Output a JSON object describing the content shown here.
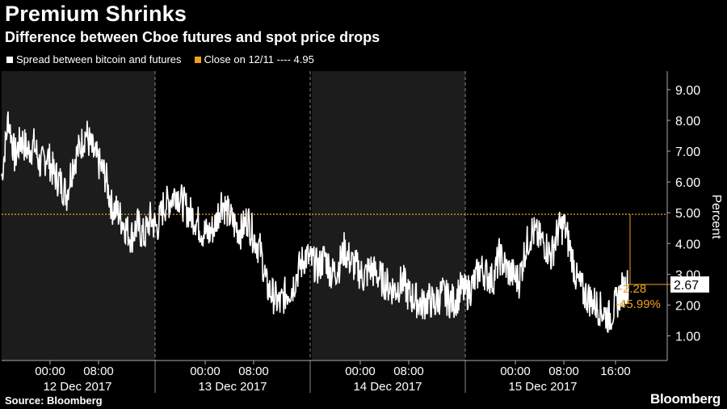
{
  "chart_data": {
    "type": "line",
    "title": "Premium Shrinks",
    "subtitle": "Difference between Cboe futures and spot price drops",
    "ylabel": "Percent",
    "ylim": [
      0.2,
      9.6
    ],
    "yticks": [
      "1.00",
      "2.00",
      "3.00",
      "4.00",
      "5.00",
      "6.00",
      "7.00",
      "8.00",
      "9.00"
    ],
    "x_time_labels": [
      "00:00",
      "08:00",
      "00:00",
      "08:00",
      "00:00",
      "08:00",
      "00:00",
      "08:00",
      "16:00"
    ],
    "x_day_labels": [
      "12 Dec 2017",
      "13 Dec 2017",
      "14 Dec 2017",
      "15 Dec 2017"
    ],
    "series": [
      {
        "name": "Spread between bitcoin and futures",
        "color": "#ffffff",
        "x_hours_labels_note": "",
        "values": [
          [
            -2.0,
            6.2
          ],
          [
            -1.0,
            8.1
          ],
          [
            0.0,
            6.8
          ],
          [
            1.0,
            7.4
          ],
          [
            2.0,
            7.0
          ],
          [
            3.0,
            7.2
          ],
          [
            4.0,
            6.5
          ],
          [
            5.0,
            6.9
          ],
          [
            6.0,
            6.3
          ],
          [
            7.0,
            6.0
          ],
          [
            8.0,
            5.6
          ],
          [
            9.0,
            6.6
          ],
          [
            10.0,
            7.1
          ],
          [
            11.0,
            7.6
          ],
          [
            12.0,
            7.0
          ],
          [
            13.0,
            6.6
          ],
          [
            14.0,
            6.2
          ],
          [
            15.0,
            5.2
          ],
          [
            16.0,
            5.0
          ],
          [
            17.0,
            4.6
          ],
          [
            18.0,
            4.2
          ],
          [
            19.0,
            4.6
          ],
          [
            20.0,
            4.2
          ],
          [
            21.0,
            4.8
          ],
          [
            22.0,
            4.5
          ],
          [
            23.0,
            5.2
          ],
          [
            24.0,
            5.4
          ],
          [
            25.0,
            5.7
          ],
          [
            26.0,
            5.3
          ],
          [
            27.0,
            5.0
          ],
          [
            28.0,
            4.8
          ],
          [
            29.0,
            4.4
          ],
          [
            30.0,
            4.3
          ],
          [
            31.0,
            4.6
          ],
          [
            32.0,
            5.4
          ],
          [
            33.0,
            5.0
          ],
          [
            34.0,
            4.6
          ],
          [
            35.0,
            4.4
          ],
          [
            36.0,
            4.8
          ],
          [
            37.0,
            4.2
          ],
          [
            38.0,
            3.8
          ],
          [
            39.0,
            2.6
          ],
          [
            40.0,
            2.3
          ],
          [
            41.0,
            2.0
          ],
          [
            42.0,
            2.4
          ],
          [
            43.0,
            2.6
          ],
          [
            44.0,
            3.2
          ],
          [
            45.0,
            3.6
          ],
          [
            46.0,
            3.4
          ],
          [
            47.0,
            3.2
          ],
          [
            48.0,
            3.6
          ],
          [
            49.0,
            3.0
          ],
          [
            50.0,
            3.2
          ],
          [
            51.0,
            3.8
          ],
          [
            52.0,
            3.4
          ],
          [
            53.0,
            3.2
          ],
          [
            54.0,
            2.9
          ],
          [
            55.0,
            3.2
          ],
          [
            56.0,
            3.0
          ],
          [
            57.0,
            2.8
          ],
          [
            58.0,
            2.6
          ],
          [
            59.0,
            2.5
          ],
          [
            60.0,
            2.8
          ],
          [
            61.0,
            2.3
          ],
          [
            62.0,
            2.2
          ],
          [
            63.0,
            2.0
          ],
          [
            64.0,
            2.2
          ],
          [
            65.0,
            2.0
          ],
          [
            66.0,
            2.4
          ],
          [
            67.0,
            2.2
          ],
          [
            68.0,
            2.1
          ],
          [
            69.0,
            2.5
          ],
          [
            70.0,
            2.4
          ],
          [
            71.0,
            2.7
          ],
          [
            72.0,
            3.2
          ],
          [
            73.0,
            3.0
          ],
          [
            74.0,
            2.8
          ],
          [
            75.0,
            3.6
          ],
          [
            76.0,
            3.2
          ],
          [
            77.0,
            3.0
          ],
          [
            78.0,
            2.8
          ],
          [
            79.0,
            3.8
          ],
          [
            80.0,
            4.4
          ],
          [
            81.0,
            4.2
          ],
          [
            82.0,
            4.0
          ],
          [
            83.0,
            3.6
          ],
          [
            84.0,
            4.4
          ],
          [
            85.0,
            4.6
          ],
          [
            86.0,
            3.8
          ],
          [
            87.0,
            2.8
          ],
          [
            88.0,
            2.4
          ],
          [
            89.0,
            2.2
          ],
          [
            90.0,
            2.0
          ],
          [
            91.0,
            1.8
          ],
          [
            92.0,
            1.6
          ],
          [
            93.0,
            2.0
          ],
          [
            94.0,
            2.5
          ],
          [
            95.0,
            2.67
          ]
        ]
      },
      {
        "name": "Close on 12/11 ---- 4.95",
        "color": "#f0a020",
        "value": 4.95
      }
    ],
    "annotations": {
      "last_value": "2.67",
      "change": "-2.28",
      "change_pct": "-45.99%"
    },
    "source": "Source: Bloomberg",
    "brand": "Bloomberg"
  }
}
